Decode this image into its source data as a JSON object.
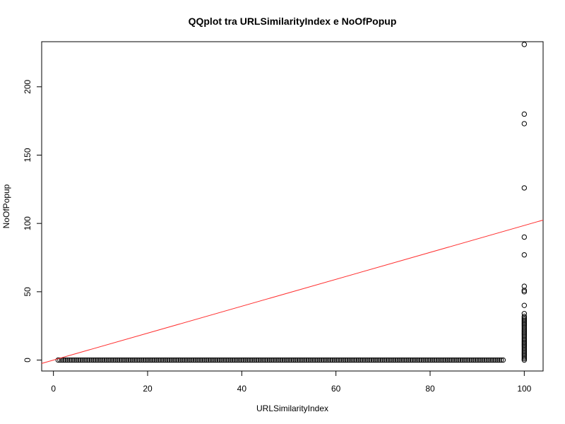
{
  "chart_data": {
    "type": "scatter",
    "title": "QQplot tra URLSimilarityIndex e NoOfPopup",
    "xlabel": "URLSimilarityIndex",
    "ylabel": "NoOfPopup",
    "xlim": [
      -2.5,
      104
    ],
    "ylim": [
      -8,
      233
    ],
    "x_ticks": [
      0,
      20,
      40,
      60,
      80,
      100
    ],
    "y_ticks": [
      0,
      50,
      100,
      150,
      200
    ],
    "grid": false,
    "point_color": "#000000",
    "line_color": "#ff3030",
    "reference_line": {
      "intercept": 0,
      "slope": 0.985
    },
    "zero_run": {
      "x_start": 1,
      "x_end": 95.5,
      "y": 0
    },
    "points_at_100": [
      0,
      1,
      2,
      3,
      4,
      5,
      6,
      7,
      8,
      9,
      10,
      11,
      12,
      13,
      14,
      15,
      16,
      17,
      18,
      19,
      20,
      21,
      22,
      23,
      24,
      25,
      26,
      27,
      28,
      29,
      30,
      31,
      32,
      34,
      40,
      50,
      51,
      54,
      77,
      90,
      126,
      173,
      180,
      231
    ]
  }
}
